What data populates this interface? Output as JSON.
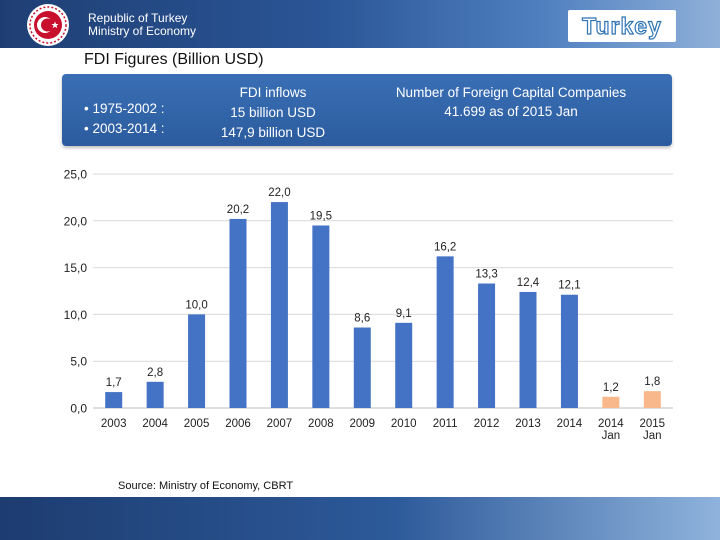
{
  "header": {
    "ministry_line1": "Republic of Turkey",
    "ministry_line2": "Ministry of Economy",
    "brand": "Turkey"
  },
  "title": "FDI Figures (Billion USD)",
  "info": {
    "period1": "• 1975-2002 :",
    "period2": "• 2003-2014 :",
    "inflows_header": "FDI inflows",
    "inflows_1": "15 billion USD",
    "inflows_2": "147,9 billion USD",
    "companies_header": "Number of Foreign Capital Companies",
    "companies_value": "41.699 as of 2015 Jan"
  },
  "source": "Source: Ministry of Economy, CBRT",
  "colors": {
    "bar": "#4472c4",
    "bar_highlight": "#f8b88b",
    "grid": "#d9d9d9"
  },
  "chart_data": {
    "type": "bar",
    "title": "FDI Figures (Billion USD)",
    "xlabel": "",
    "ylabel": "",
    "ylim": [
      0,
      25
    ],
    "yticks": [
      "0,0",
      "5,0",
      "10,0",
      "15,0",
      "20,0",
      "25,0"
    ],
    "categories": [
      "2003",
      "2004",
      "2005",
      "2006",
      "2007",
      "2008",
      "2009",
      "2010",
      "2011",
      "2012",
      "2013",
      "2014",
      "2014\nJan",
      "2015\nJan"
    ],
    "values": [
      1.7,
      2.8,
      10.0,
      20.2,
      22.0,
      19.5,
      8.6,
      9.1,
      16.2,
      13.3,
      12.4,
      12.1,
      1.2,
      1.8
    ],
    "labels": [
      "1,7",
      "2,8",
      "10,0",
      "20,2",
      "22,0",
      "19,5",
      "8,6",
      "9,1",
      "16,2",
      "13,3",
      "12,4",
      "12,1",
      "1,2",
      "1,8"
    ],
    "highlight": [
      false,
      false,
      false,
      false,
      false,
      false,
      false,
      false,
      false,
      false,
      false,
      false,
      true,
      true
    ]
  }
}
